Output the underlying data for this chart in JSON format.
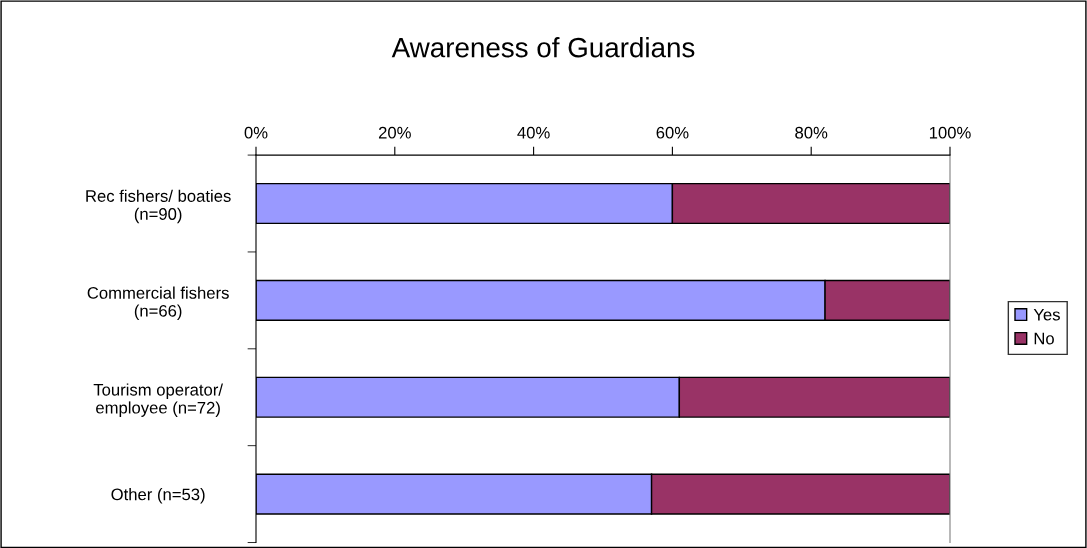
{
  "chart_data": {
    "type": "bar",
    "orientation": "horizontal",
    "stacked": true,
    "title": "Awareness of Guardians",
    "categories": [
      "Rec fishers/ boaties\n(n=90)",
      "Commercial fishers\n(n=66)",
      "Tourism operator/\nemployee (n=72)",
      "Other (n=53)"
    ],
    "series": [
      {
        "name": "Yes",
        "color": "#9999ff",
        "values": [
          60,
          82,
          61,
          57
        ]
      },
      {
        "name": "No",
        "color": "#993366",
        "values": [
          40,
          18,
          39,
          43
        ]
      }
    ],
    "xlim": [
      0,
      100
    ],
    "xticks": [
      {
        "value": 0,
        "label": "0%"
      },
      {
        "value": 20,
        "label": "20%"
      },
      {
        "value": 40,
        "label": "40%"
      },
      {
        "value": 60,
        "label": "60%"
      },
      {
        "value": 80,
        "label": "80%"
      },
      {
        "value": 100,
        "label": "100%"
      }
    ],
    "grid": false,
    "legend": "right"
  }
}
